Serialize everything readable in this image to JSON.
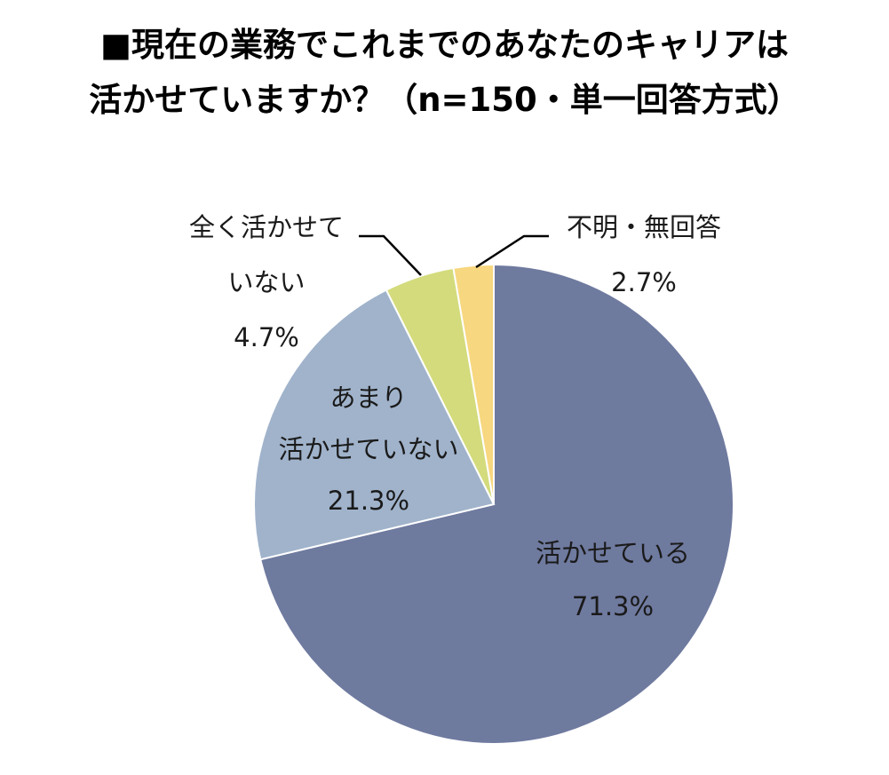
{
  "title": {
    "line1": "■現在の業務でこれまでのあなたのキャリアは",
    "line2": "活かせていますか？（n=150・単一回答方式）"
  },
  "chart_data": {
    "type": "pie",
    "slices": [
      {
        "label_lines": [
          "活かせている"
        ],
        "value": 71.3,
        "value_label": "71.3%",
        "color": "#6f7a9f"
      },
      {
        "label_lines": [
          "あまり",
          "活かせていない"
        ],
        "value": 21.3,
        "value_label": "21.3%",
        "color": "#a0b3cb"
      },
      {
        "label_lines": [
          "全く活かせて",
          "いない"
        ],
        "value": 4.7,
        "value_label": "4.7%",
        "color": "#d3db7c"
      },
      {
        "label_lines": [
          "不明・無回答"
        ],
        "value": 2.7,
        "value_label": "2.7%",
        "color": "#f7d77f"
      }
    ],
    "start_angle": "12 o'clock",
    "direction": "clockwise",
    "leader_lines": "yes, for the two smallest slices"
  }
}
